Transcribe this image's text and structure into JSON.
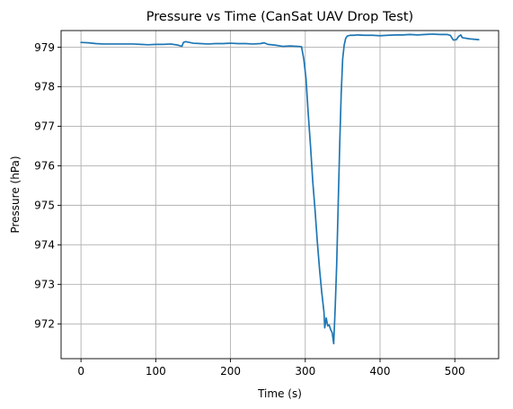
{
  "chart_data": {
    "type": "line",
    "title": "Pressure vs Time (CanSat UAV Drop Test)",
    "xlabel": "Time (s)",
    "ylabel": "Pressure (hPa)",
    "xlim": [
      -26.6,
      558.6
    ],
    "ylim": [
      971.12,
      979.42
    ],
    "x_ticks": [
      0,
      100,
      200,
      300,
      400,
      500
    ],
    "x_tick_labels": [
      "0",
      "100",
      "200",
      "300",
      "400",
      "500"
    ],
    "y_ticks": [
      972,
      973,
      974,
      975,
      976,
      977,
      978,
      979
    ],
    "y_tick_labels": [
      "972",
      "973",
      "974",
      "975",
      "976",
      "977",
      "978",
      "979"
    ],
    "grid": true,
    "line_color": "#1f77b4",
    "series": [
      {
        "x": [
          0,
          10,
          20,
          30,
          40,
          50,
          60,
          70,
          80,
          90,
          100,
          110,
          120,
          130,
          135,
          137,
          140,
          150,
          160,
          170,
          180,
          190,
          200,
          210,
          220,
          230,
          240,
          245,
          250,
          260,
          270,
          280,
          290,
          295,
          298,
          301,
          304,
          307,
          310,
          313,
          316,
          319,
          322,
          325,
          326,
          328,
          330,
          332,
          334,
          336,
          338,
          340,
          342,
          344,
          346,
          348,
          350,
          352,
          354,
          356,
          358,
          360,
          365,
          370,
          380,
          390,
          400,
          410,
          420,
          430,
          440,
          450,
          460,
          470,
          480,
          490,
          494,
          498,
          502,
          505,
          508,
          510,
          520,
          532
        ],
        "y": [
          979.12,
          979.11,
          979.09,
          979.08,
          979.08,
          979.08,
          979.08,
          979.08,
          979.07,
          979.06,
          979.07,
          979.07,
          979.08,
          979.05,
          979.02,
          979.12,
          979.14,
          979.1,
          979.09,
          979.08,
          979.09,
          979.09,
          979.1,
          979.09,
          979.09,
          979.08,
          979.09,
          979.11,
          979.07,
          979.05,
          979.02,
          979.03,
          979.02,
          979.01,
          978.7,
          978.2,
          977.3,
          976.5,
          975.6,
          974.9,
          974.1,
          973.4,
          972.8,
          972.3,
          971.9,
          972.15,
          971.95,
          971.97,
          971.85,
          971.78,
          971.5,
          972.4,
          973.5,
          975.0,
          976.5,
          977.8,
          978.7,
          979.05,
          979.22,
          979.28,
          979.29,
          979.3,
          979.3,
          979.31,
          979.3,
          979.3,
          979.29,
          979.3,
          979.31,
          979.31,
          979.32,
          979.31,
          979.32,
          979.33,
          979.32,
          979.32,
          979.3,
          979.18,
          979.19,
          979.27,
          979.31,
          979.24,
          979.21,
          979.19
        ]
      }
    ]
  }
}
